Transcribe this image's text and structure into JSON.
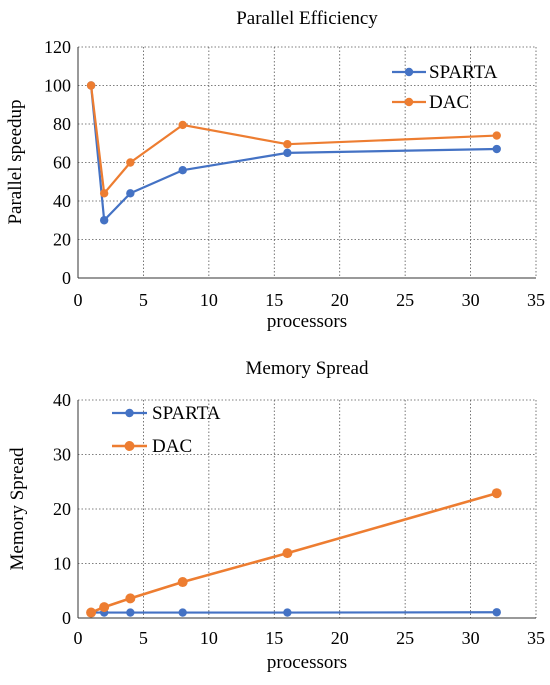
{
  "chart_data": [
    {
      "type": "line",
      "title": "Parallel Efficiency",
      "xlabel": "processors",
      "ylabel": "Parallel speedup",
      "xlim": [
        0,
        35
      ],
      "ylim": [
        0,
        120
      ],
      "xticks": [
        0,
        5,
        10,
        15,
        20,
        25,
        30,
        35
      ],
      "yticks": [
        0,
        20,
        40,
        60,
        80,
        100,
        120
      ],
      "grid": true,
      "legend_position": "top-right",
      "series": [
        {
          "name": "SPARTA",
          "color": "#4472C4",
          "x": [
            1,
            2,
            4,
            8,
            16,
            32
          ],
          "y": [
            100,
            30,
            44,
            56,
            65,
            67
          ]
        },
        {
          "name": "DAC",
          "color": "#ED7D31",
          "x": [
            1,
            2,
            4,
            8,
            16,
            32
          ],
          "y": [
            100,
            44,
            60,
            79.5,
            69.5,
            74
          ]
        }
      ]
    },
    {
      "type": "line",
      "title": "Memory Spread",
      "xlabel": "processors",
      "ylabel": "Memory Spread",
      "xlim": [
        0,
        35
      ],
      "ylim": [
        0,
        40
      ],
      "xticks": [
        0,
        5,
        10,
        15,
        20,
        25,
        30,
        35
      ],
      "yticks": [
        0,
        10,
        20,
        30,
        40
      ],
      "grid": true,
      "legend_position": "top-left",
      "series": [
        {
          "name": "SPARTA",
          "color": "#4472C4",
          "x": [
            1,
            2,
            4,
            8,
            16,
            32
          ],
          "y": [
            1,
            1,
            1,
            1,
            1,
            1.05
          ]
        },
        {
          "name": "DAC",
          "color": "#ED7D31",
          "x": [
            1,
            2,
            4,
            8,
            16,
            32
          ],
          "y": [
            1,
            2,
            3.6,
            6.6,
            11.9,
            22.9
          ]
        }
      ]
    }
  ]
}
